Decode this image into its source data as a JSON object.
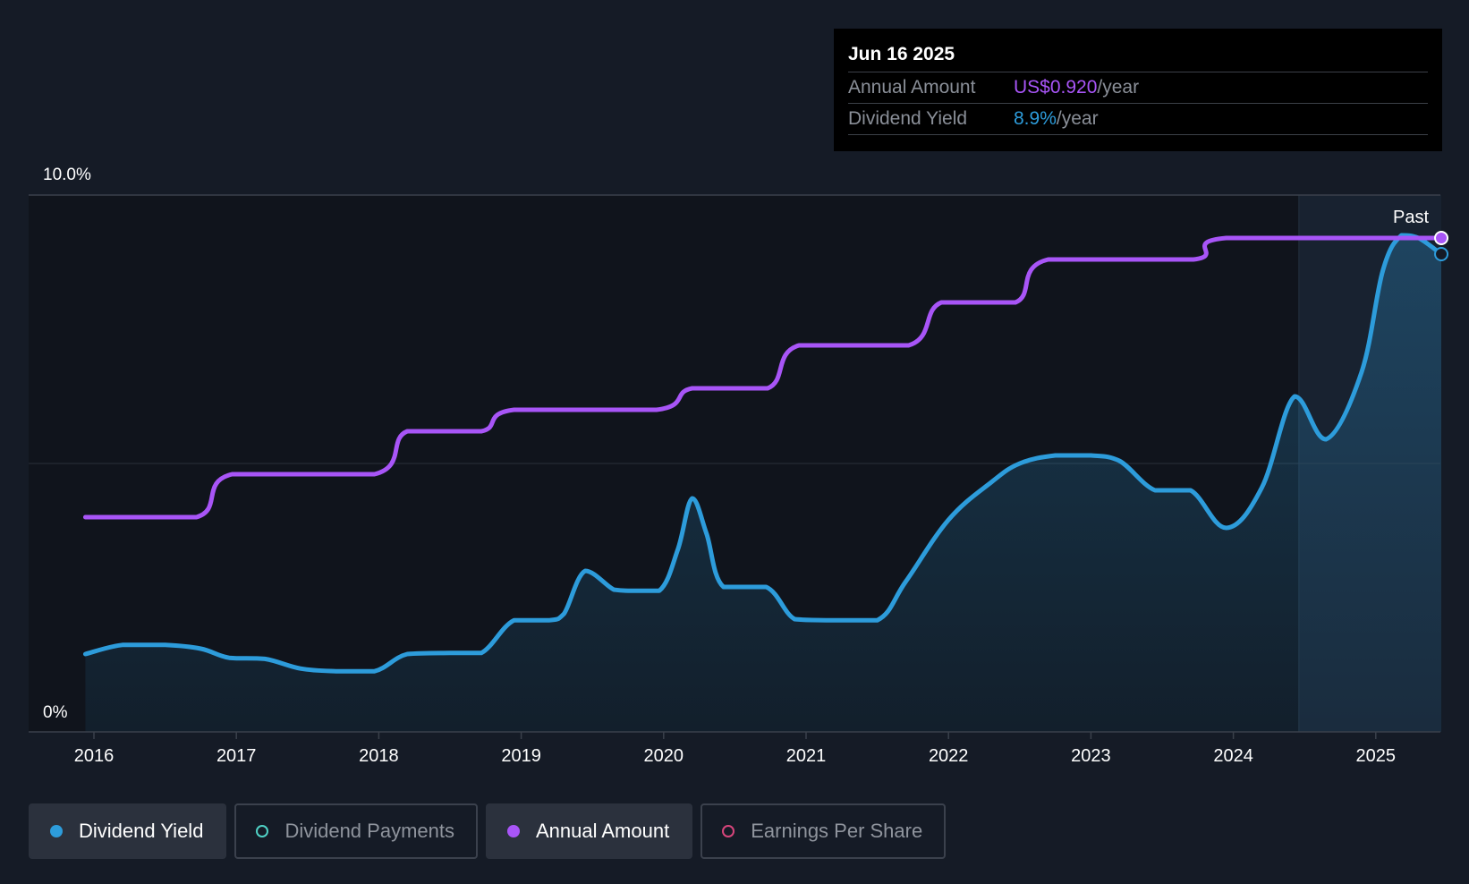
{
  "tooltip": {
    "date": "Jun 16 2025",
    "rows": [
      {
        "label": "Annual Amount",
        "value": "US$0.920",
        "unit": "/year",
        "color": "#a855f7"
      },
      {
        "label": "Dividend Yield",
        "value": "8.9%",
        "unit": "/year",
        "color": "#2d9cdb"
      }
    ]
  },
  "legend": [
    {
      "label": "Dividend Yield",
      "color": "#2d9cdb",
      "filled": true,
      "active": true
    },
    {
      "label": "Dividend Payments",
      "color": "#4fd1c5",
      "filled": false,
      "active": false
    },
    {
      "label": "Annual Amount",
      "color": "#a855f7",
      "filled": true,
      "active": true
    },
    {
      "label": "Earnings Per Share",
      "color": "#d6457b",
      "filled": false,
      "active": false
    }
  ],
  "chart_data": {
    "type": "line",
    "y_tick_labels": [
      "10.0%",
      "0%"
    ],
    "ylim": [
      0,
      10
    ],
    "xlim": [
      2015.6,
      2025.46
    ],
    "x_ticks": [
      "2016",
      "2017",
      "2018",
      "2019",
      "2020",
      "2021",
      "2022",
      "2023",
      "2024",
      "2025"
    ],
    "past_label": "Past",
    "past_start": 2024.46,
    "grid": true,
    "series": [
      {
        "name": "Dividend Yield",
        "color": "#2d9cdb",
        "fill": true,
        "points": [
          [
            2015.94,
            1.45
          ],
          [
            2016.2,
            1.62
          ],
          [
            2016.5,
            1.62
          ],
          [
            2016.75,
            1.55
          ],
          [
            2016.95,
            1.38
          ],
          [
            2017.2,
            1.36
          ],
          [
            2017.45,
            1.18
          ],
          [
            2017.7,
            1.13
          ],
          [
            2017.97,
            1.13
          ],
          [
            2018.2,
            1.45
          ],
          [
            2018.5,
            1.47
          ],
          [
            2018.72,
            1.47
          ],
          [
            2018.95,
            2.08
          ],
          [
            2019.2,
            2.08
          ],
          [
            2019.3,
            2.2
          ],
          [
            2019.45,
            3.0
          ],
          [
            2019.65,
            2.65
          ],
          [
            2019.75,
            2.63
          ],
          [
            2019.97,
            2.63
          ],
          [
            2020.1,
            3.4
          ],
          [
            2020.2,
            4.35
          ],
          [
            2020.3,
            3.7
          ],
          [
            2020.42,
            2.7
          ],
          [
            2020.72,
            2.7
          ],
          [
            2020.92,
            2.1
          ],
          [
            2021.15,
            2.08
          ],
          [
            2021.5,
            2.08
          ],
          [
            2021.7,
            2.8
          ],
          [
            2022.0,
            3.95
          ],
          [
            2022.3,
            4.65
          ],
          [
            2022.5,
            5.0
          ],
          [
            2022.75,
            5.15
          ],
          [
            2023.0,
            5.15
          ],
          [
            2023.2,
            5.05
          ],
          [
            2023.45,
            4.5
          ],
          [
            2023.7,
            4.5
          ],
          [
            2023.95,
            3.8
          ],
          [
            2024.2,
            4.55
          ],
          [
            2024.43,
            6.25
          ],
          [
            2024.65,
            5.45
          ],
          [
            2024.9,
            6.7
          ],
          [
            2025.05,
            8.6
          ],
          [
            2025.18,
            9.25
          ],
          [
            2025.3,
            9.2
          ],
          [
            2025.46,
            8.9
          ]
        ]
      },
      {
        "name": "Annual Amount",
        "color": "#a855f7",
        "fill": false,
        "points": [
          [
            2015.94,
            4.0
          ],
          [
            2016.72,
            4.0
          ],
          [
            2016.97,
            4.8
          ],
          [
            2017.97,
            4.8
          ],
          [
            2018.2,
            5.6
          ],
          [
            2018.72,
            5.6
          ],
          [
            2018.95,
            6.0
          ],
          [
            2019.95,
            6.0
          ],
          [
            2020.2,
            6.4
          ],
          [
            2020.73,
            6.4
          ],
          [
            2020.95,
            7.2
          ],
          [
            2021.72,
            7.2
          ],
          [
            2021.95,
            8.0
          ],
          [
            2022.47,
            8.0
          ],
          [
            2022.7,
            8.8
          ],
          [
            2023.72,
            8.8
          ],
          [
            2023.95,
            9.2
          ],
          [
            2025.46,
            9.2
          ]
        ]
      }
    ]
  }
}
